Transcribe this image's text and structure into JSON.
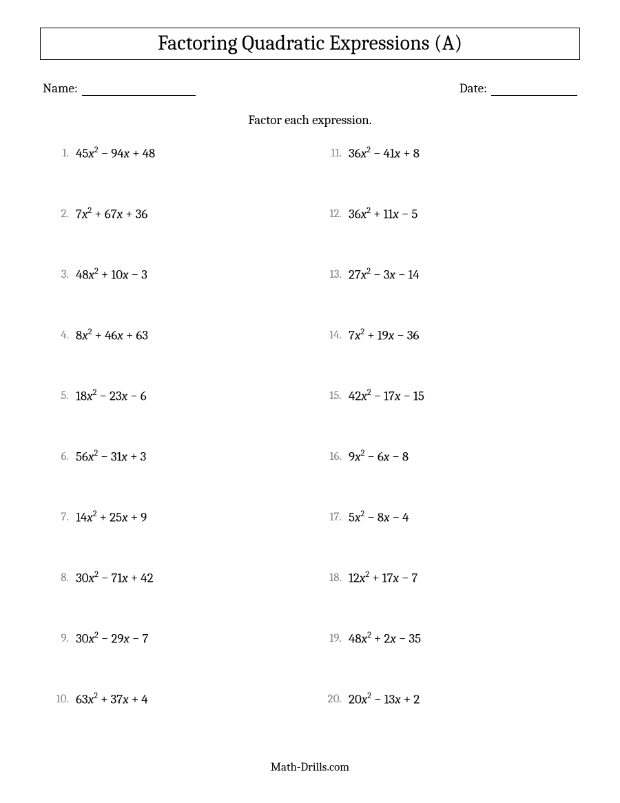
{
  "title": "Factoring Quadratic Expressions (A)",
  "name_label": "Name:",
  "date_label": "Date:",
  "name_line_width": 165,
  "date_line_width": 125,
  "instruction": "Factor each expression.",
  "footer": "Math-Drills.com",
  "number_color": "#808080",
  "text_color": "#000000",
  "background_color": "#ffffff",
  "font_family": "Cambria",
  "title_fontsize": 30,
  "body_fontsize": 19,
  "problems": [
    {
      "n": "1.",
      "a": 45,
      "b": -94,
      "c": 48
    },
    {
      "n": "2.",
      "a": 7,
      "b": 67,
      "c": 36
    },
    {
      "n": "3.",
      "a": 48,
      "b": 10,
      "c": -3
    },
    {
      "n": "4.",
      "a": 8,
      "b": 46,
      "c": 63
    },
    {
      "n": "5.",
      "a": 18,
      "b": -23,
      "c": -6
    },
    {
      "n": "6.",
      "a": 56,
      "b": -31,
      "c": 3
    },
    {
      "n": "7.",
      "a": 14,
      "b": 25,
      "c": 9
    },
    {
      "n": "8.",
      "a": 30,
      "b": -71,
      "c": 42
    },
    {
      "n": "9.",
      "a": 30,
      "b": -29,
      "c": -7
    },
    {
      "n": "10.",
      "a": 63,
      "b": 37,
      "c": 4
    },
    {
      "n": "11.",
      "a": 36,
      "b": -41,
      "c": 8
    },
    {
      "n": "12.",
      "a": 36,
      "b": 11,
      "c": -5
    },
    {
      "n": "13.",
      "a": 27,
      "b": -3,
      "c": -14
    },
    {
      "n": "14.",
      "a": 7,
      "b": 19,
      "c": -36
    },
    {
      "n": "15.",
      "a": 42,
      "b": -17,
      "c": -15
    },
    {
      "n": "16.",
      "a": 9,
      "b": -6,
      "c": -8
    },
    {
      "n": "17.",
      "a": 5,
      "b": -8,
      "c": -4
    },
    {
      "n": "18.",
      "a": 12,
      "b": 17,
      "c": -7
    },
    {
      "n": "19.",
      "a": 48,
      "b": 2,
      "c": -35
    },
    {
      "n": "20.",
      "a": 20,
      "b": -13,
      "c": 2
    }
  ]
}
